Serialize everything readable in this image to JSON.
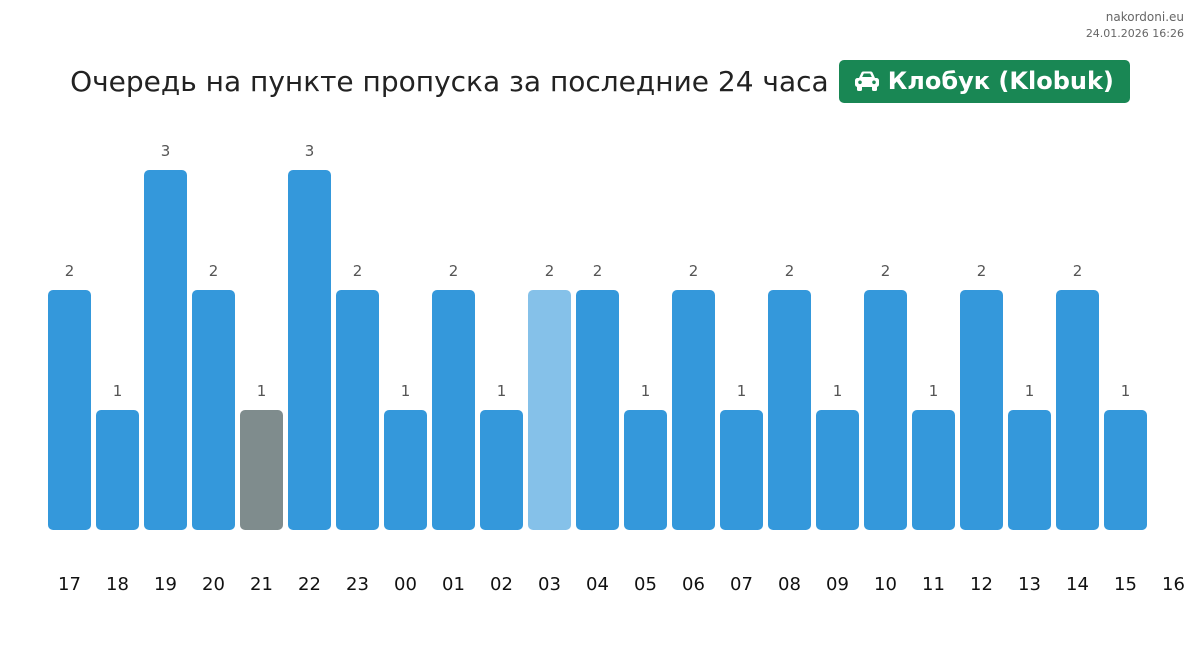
{
  "header": {
    "site": "nakordoni.eu",
    "timestamp": "24.01.2026 16:26",
    "title": "Очередь на пункте пропуска за последние 24 часа",
    "checkpoint_label": "Клобук (Klobuk)",
    "checkpoint_icon": "car-icon"
  },
  "colors": {
    "bar": "#3498db",
    "bar_highlight_light": "#85c1e9",
    "bar_highlight_gray": "#7f8c8d",
    "badge": "#198754"
  },
  "chart_data": {
    "type": "bar",
    "title": "Очередь на пункте пропуска за последние 24 часа",
    "categories": [
      "17",
      "18",
      "19",
      "20",
      "21",
      "22",
      "23",
      "00",
      "01",
      "02",
      "03",
      "04",
      "05",
      "06",
      "07",
      "08",
      "09",
      "10",
      "11",
      "12",
      "13",
      "14",
      "15"
    ],
    "x_tick_labels": [
      "17",
      "18",
      "19",
      "20",
      "21",
      "22",
      "23",
      "00",
      "01",
      "02",
      "03",
      "04",
      "05",
      "06",
      "07",
      "08",
      "09",
      "10",
      "11",
      "12",
      "13",
      "14",
      "15",
      "16"
    ],
    "values": [
      2,
      1,
      3,
      2,
      1,
      3,
      2,
      1,
      2,
      1,
      2,
      2,
      1,
      2,
      1,
      2,
      1,
      2,
      1,
      2,
      1,
      2,
      1
    ],
    "bar_colors": [
      "#3498db",
      "#3498db",
      "#3498db",
      "#3498db",
      "#7f8c8d",
      "#3498db",
      "#3498db",
      "#3498db",
      "#3498db",
      "#3498db",
      "#85c1e9",
      "#3498db",
      "#3498db",
      "#3498db",
      "#3498db",
      "#3498db",
      "#3498db",
      "#3498db",
      "#3498db",
      "#3498db",
      "#3498db",
      "#3498db",
      "#3498db"
    ],
    "ylim": [
      0,
      3
    ],
    "grid": false,
    "data_labels": true
  }
}
